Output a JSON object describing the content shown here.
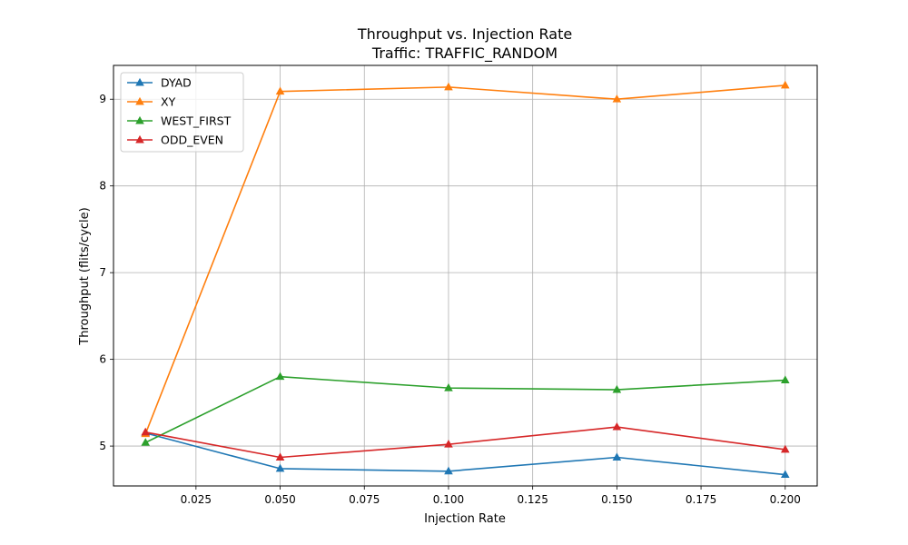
{
  "chart_data": {
    "type": "line",
    "title": "Throughput vs. Injection Rate",
    "subtitle": "Traffic: TRAFFIC_RANDOM",
    "xlabel": "Injection Rate",
    "ylabel": "Throughput (flits/cycle)",
    "x": [
      0.01,
      0.05,
      0.1,
      0.15,
      0.2
    ],
    "xlim": [
      0.0005,
      0.2095
    ],
    "ylim": [
      4.54,
      9.39
    ],
    "xticks": [
      0.025,
      0.05,
      0.075,
      0.1,
      0.125,
      0.15,
      0.175,
      0.2
    ],
    "xtick_labels": [
      "0.025",
      "0.050",
      "0.075",
      "0.100",
      "0.125",
      "0.150",
      "0.175",
      "0.200"
    ],
    "yticks": [
      5,
      6,
      7,
      8,
      9
    ],
    "ytick_labels": [
      "5",
      "6",
      "7",
      "8",
      "9"
    ],
    "grid": true,
    "legend_position": "upper-left",
    "marker": "triangle-up",
    "series": [
      {
        "name": "DYAD",
        "color": "#1f77b4",
        "values": [
          5.15,
          4.74,
          4.71,
          4.87,
          4.67
        ]
      },
      {
        "name": "XY",
        "color": "#ff7f0e",
        "values": [
          5.14,
          9.09,
          9.14,
          9.0,
          9.16
        ]
      },
      {
        "name": "WEST_FIRST",
        "color": "#2ca02c",
        "values": [
          5.04,
          5.8,
          5.67,
          5.65,
          5.76
        ]
      },
      {
        "name": "ODD_EVEN",
        "color": "#d62728",
        "values": [
          5.16,
          4.87,
          5.02,
          5.22,
          4.96
        ]
      }
    ]
  }
}
